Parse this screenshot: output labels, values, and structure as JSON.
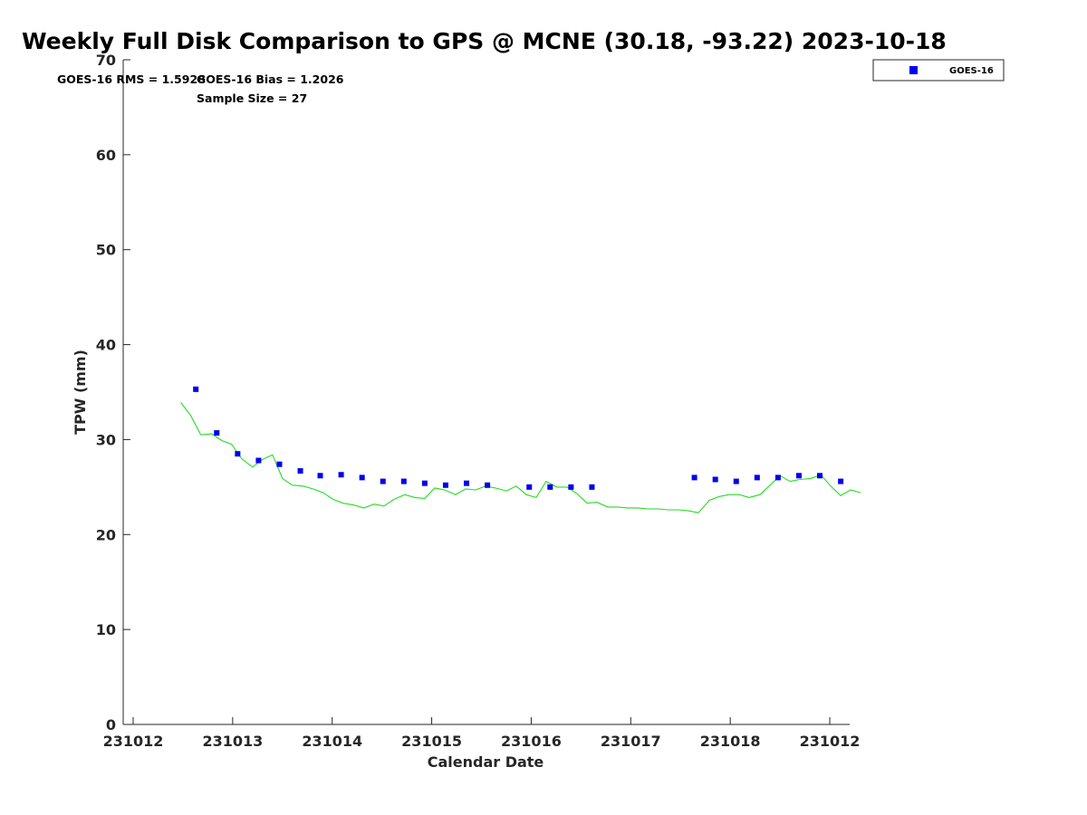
{
  "chart_data": {
    "type": "line+scatter",
    "title": "Weekly Full Disk Comparison to GPS @ MCNE (30.18, -93.22) 2023-10-18",
    "xlabel": "Calendar Date",
    "ylabel": "TPW (mm)",
    "ylim": [
      0,
      70
    ],
    "xlim": [
      -0.1,
      7.2
    ],
    "yticks": [
      0,
      10,
      20,
      30,
      40,
      50,
      60,
      70
    ],
    "xticks": [
      {
        "x": 0,
        "label": "231012"
      },
      {
        "x": 1,
        "label": "231013"
      },
      {
        "x": 2,
        "label": "231014"
      },
      {
        "x": 3,
        "label": "231015"
      },
      {
        "x": 4,
        "label": "231016"
      },
      {
        "x": 5,
        "label": "231017"
      },
      {
        "x": 6,
        "label": "231018"
      },
      {
        "x": 7,
        "label": "231012"
      }
    ],
    "annotations": {
      "rms": "GOES-16 RMS = 1.5928",
      "bias": "GOES-16 Bias = 1.2026",
      "sample": "Sample Size = 27"
    },
    "legend": {
      "position": "top-right",
      "entries": [
        "GOES-16"
      ]
    },
    "colors": {
      "goes16": "#0000ee",
      "gps": "#22dd22"
    },
    "series": [
      {
        "name": "GOES-16",
        "kind": "scatter",
        "points": [
          {
            "x": 0.63,
            "y": 35.3
          },
          {
            "x": 0.84,
            "y": 30.7
          },
          {
            "x": 1.05,
            "y": 28.5
          },
          {
            "x": 1.26,
            "y": 27.8
          },
          {
            "x": 1.47,
            "y": 27.4
          },
          {
            "x": 1.68,
            "y": 26.7
          },
          {
            "x": 1.88,
            "y": 26.2
          },
          {
            "x": 2.09,
            "y": 26.3
          },
          {
            "x": 2.3,
            "y": 26.0
          },
          {
            "x": 2.51,
            "y": 25.6
          },
          {
            "x": 2.72,
            "y": 25.6
          },
          {
            "x": 2.93,
            "y": 25.4
          },
          {
            "x": 3.14,
            "y": 25.2
          },
          {
            "x": 3.35,
            "y": 25.4
          },
          {
            "x": 3.56,
            "y": 25.2
          },
          {
            "x": 3.98,
            "y": 25.0
          },
          {
            "x": 4.19,
            "y": 25.0
          },
          {
            "x": 4.4,
            "y": 25.0
          },
          {
            "x": 4.61,
            "y": 25.0
          },
          {
            "x": 5.64,
            "y": 26.0
          },
          {
            "x": 5.85,
            "y": 25.8
          },
          {
            "x": 6.06,
            "y": 25.6
          },
          {
            "x": 6.27,
            "y": 26.0
          },
          {
            "x": 6.48,
            "y": 26.0
          },
          {
            "x": 6.69,
            "y": 26.2
          },
          {
            "x": 6.9,
            "y": 26.2
          },
          {
            "x": 7.11,
            "y": 25.6
          }
        ]
      },
      {
        "kind": "line",
        "points": [
          {
            "x": 0.48,
            "y": 33.9
          },
          {
            "x": 0.58,
            "y": 32.5
          },
          {
            "x": 0.68,
            "y": 30.5
          },
          {
            "x": 0.79,
            "y": 30.6
          },
          {
            "x": 0.89,
            "y": 29.9
          },
          {
            "x": 0.99,
            "y": 29.5
          },
          {
            "x": 1.09,
            "y": 28.0
          },
          {
            "x": 1.2,
            "y": 27.1
          },
          {
            "x": 1.3,
            "y": 27.9
          },
          {
            "x": 1.4,
            "y": 28.4
          },
          {
            "x": 1.5,
            "y": 25.9
          },
          {
            "x": 1.6,
            "y": 25.2
          },
          {
            "x": 1.71,
            "y": 25.1
          },
          {
            "x": 1.81,
            "y": 24.8
          },
          {
            "x": 1.91,
            "y": 24.4
          },
          {
            "x": 2.01,
            "y": 23.7
          },
          {
            "x": 2.11,
            "y": 23.3
          },
          {
            "x": 2.22,
            "y": 23.1
          },
          {
            "x": 2.32,
            "y": 22.8
          },
          {
            "x": 2.42,
            "y": 23.2
          },
          {
            "x": 2.52,
            "y": 23.0
          },
          {
            "x": 2.62,
            "y": 23.7
          },
          {
            "x": 2.73,
            "y": 24.2
          },
          {
            "x": 2.83,
            "y": 23.9
          },
          {
            "x": 2.93,
            "y": 23.8
          },
          {
            "x": 3.03,
            "y": 24.9
          },
          {
            "x": 3.13,
            "y": 24.7
          },
          {
            "x": 3.24,
            "y": 24.2
          },
          {
            "x": 3.34,
            "y": 24.8
          },
          {
            "x": 3.44,
            "y": 24.7
          },
          {
            "x": 3.54,
            "y": 25.1
          },
          {
            "x": 3.64,
            "y": 24.9
          },
          {
            "x": 3.75,
            "y": 24.6
          },
          {
            "x": 3.85,
            "y": 25.1
          },
          {
            "x": 3.95,
            "y": 24.2
          },
          {
            "x": 4.05,
            "y": 23.9
          },
          {
            "x": 4.15,
            "y": 25.6
          },
          {
            "x": 4.26,
            "y": 25.0
          },
          {
            "x": 4.36,
            "y": 25.0
          },
          {
            "x": 4.46,
            "y": 24.3
          },
          {
            "x": 4.56,
            "y": 23.3
          },
          {
            "x": 4.66,
            "y": 23.4
          },
          {
            "x": 4.77,
            "y": 22.9
          },
          {
            "x": 4.87,
            "y": 22.9
          },
          {
            "x": 4.97,
            "y": 22.8
          },
          {
            "x": 5.07,
            "y": 22.8
          },
          {
            "x": 5.17,
            "y": 22.7
          },
          {
            "x": 5.28,
            "y": 22.7
          },
          {
            "x": 5.38,
            "y": 22.6
          },
          {
            "x": 5.48,
            "y": 22.6
          },
          {
            "x": 5.58,
            "y": 22.5
          },
          {
            "x": 5.68,
            "y": 22.3
          },
          {
            "x": 5.79,
            "y": 23.6
          },
          {
            "x": 5.89,
            "y": 24.0
          },
          {
            "x": 5.99,
            "y": 24.2
          },
          {
            "x": 6.09,
            "y": 24.2
          },
          {
            "x": 6.19,
            "y": 23.9
          },
          {
            "x": 6.3,
            "y": 24.2
          },
          {
            "x": 6.4,
            "y": 25.2
          },
          {
            "x": 6.5,
            "y": 26.2
          },
          {
            "x": 6.6,
            "y": 25.6
          },
          {
            "x": 6.7,
            "y": 25.8
          },
          {
            "x": 6.81,
            "y": 25.9
          },
          {
            "x": 6.91,
            "y": 26.3
          },
          {
            "x": 7.01,
            "y": 25.1
          },
          {
            "x": 7.11,
            "y": 24.1
          },
          {
            "x": 7.21,
            "y": 24.7
          },
          {
            "x": 7.31,
            "y": 24.4
          }
        ]
      }
    ]
  }
}
